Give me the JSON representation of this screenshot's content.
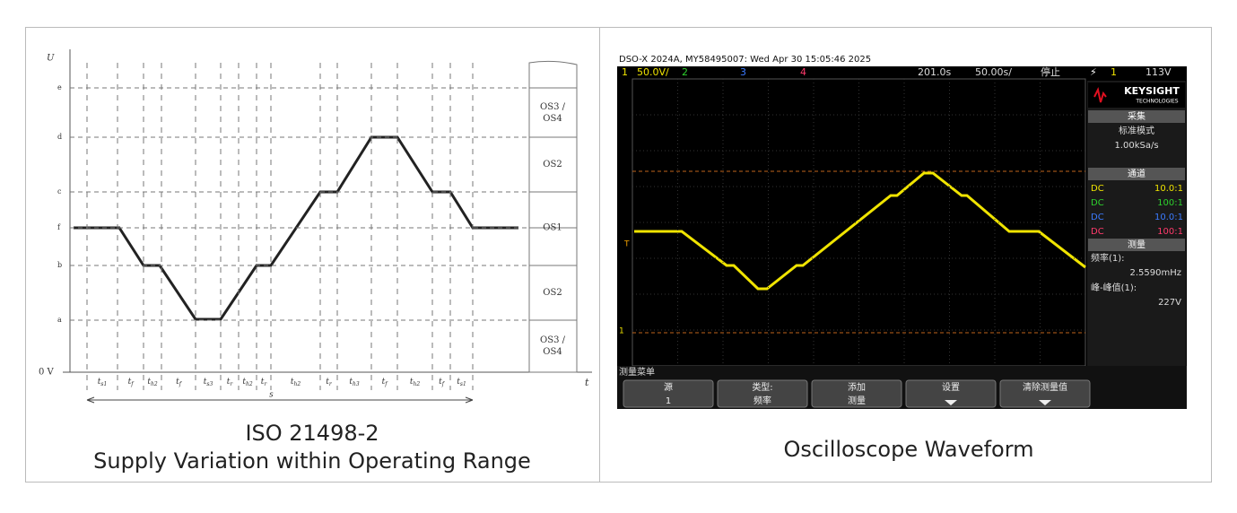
{
  "left": {
    "axis": {
      "y": "U",
      "x": "t",
      "zero": "0 V"
    },
    "levels": [
      "e",
      "d",
      "c",
      "f",
      "b",
      "a"
    ],
    "x_labels": [
      {
        "t": "t",
        "sub": "s1"
      },
      {
        "t": "t",
        "sub": "f"
      },
      {
        "t": "t",
        "sub": "h2"
      },
      {
        "t": "t",
        "sub": "f"
      },
      {
        "t": "t",
        "sub": "s3"
      },
      {
        "t": "t",
        "sub": "r"
      },
      {
        "t": "t",
        "sub": "h2"
      },
      {
        "t": "t",
        "sub": "r"
      },
      {
        "t": "t",
        "sub": "h2"
      },
      {
        "t": "t",
        "sub": "r"
      },
      {
        "t": "t",
        "sub": "h3"
      },
      {
        "t": "t",
        "sub": "f"
      },
      {
        "t": "t",
        "sub": "h2"
      },
      {
        "t": "t",
        "sub": "f"
      },
      {
        "t": "t",
        "sub": "s1"
      }
    ],
    "span_label": "s",
    "zones": [
      [
        "OS3 /",
        "OS4"
      ],
      [
        "OS2"
      ],
      [
        "OS1"
      ],
      [
        "OS2"
      ],
      [
        "OS3 /",
        "OS4"
      ]
    ],
    "caption": [
      "ISO 21498-2",
      "Supply Variation within Operating Range"
    ]
  },
  "right": {
    "header": "DSO-X 2024A, MY58495007: Wed Apr 30 15:05:46 2025",
    "status": {
      "ch1": "1",
      "scale1": "50.0V/",
      "ch2": "2",
      "ch3": "3",
      "ch4": "4",
      "delay": "201.0s",
      "timebase": "50.00s/",
      "state": "停止",
      "trig_icon": "⚡",
      "trig_ch": "1",
      "trig_level": "113V"
    },
    "brand": [
      "KEYSIGHT",
      "TECHNOLOGIES"
    ],
    "acq": {
      "title": "采集",
      "mode": "标准模式",
      "rate": "1.00kSa/s"
    },
    "channels": {
      "title": "通道",
      "rows": [
        [
          "DC",
          "10.0:1"
        ],
        [
          "DC",
          "100:1"
        ],
        [
          "DC",
          "10.0:1"
        ],
        [
          "DC",
          "100:1"
        ]
      ]
    },
    "meas": {
      "title": "测量",
      "items": [
        [
          "频率(1):",
          "2.5590mHz"
        ],
        [
          "峰-峰值(1):",
          "227V"
        ]
      ]
    },
    "markers": {
      "trigger": "T",
      "ground": "1"
    },
    "menu": {
      "title": "测量菜单",
      "keys": [
        [
          "源",
          "1"
        ],
        [
          "类型:",
          "频率"
        ],
        [
          "添加",
          "测量"
        ],
        [
          "设置"
        ],
        [
          "清除测量值"
        ]
      ]
    },
    "caption": "Oscilloscope Waveform"
  }
}
